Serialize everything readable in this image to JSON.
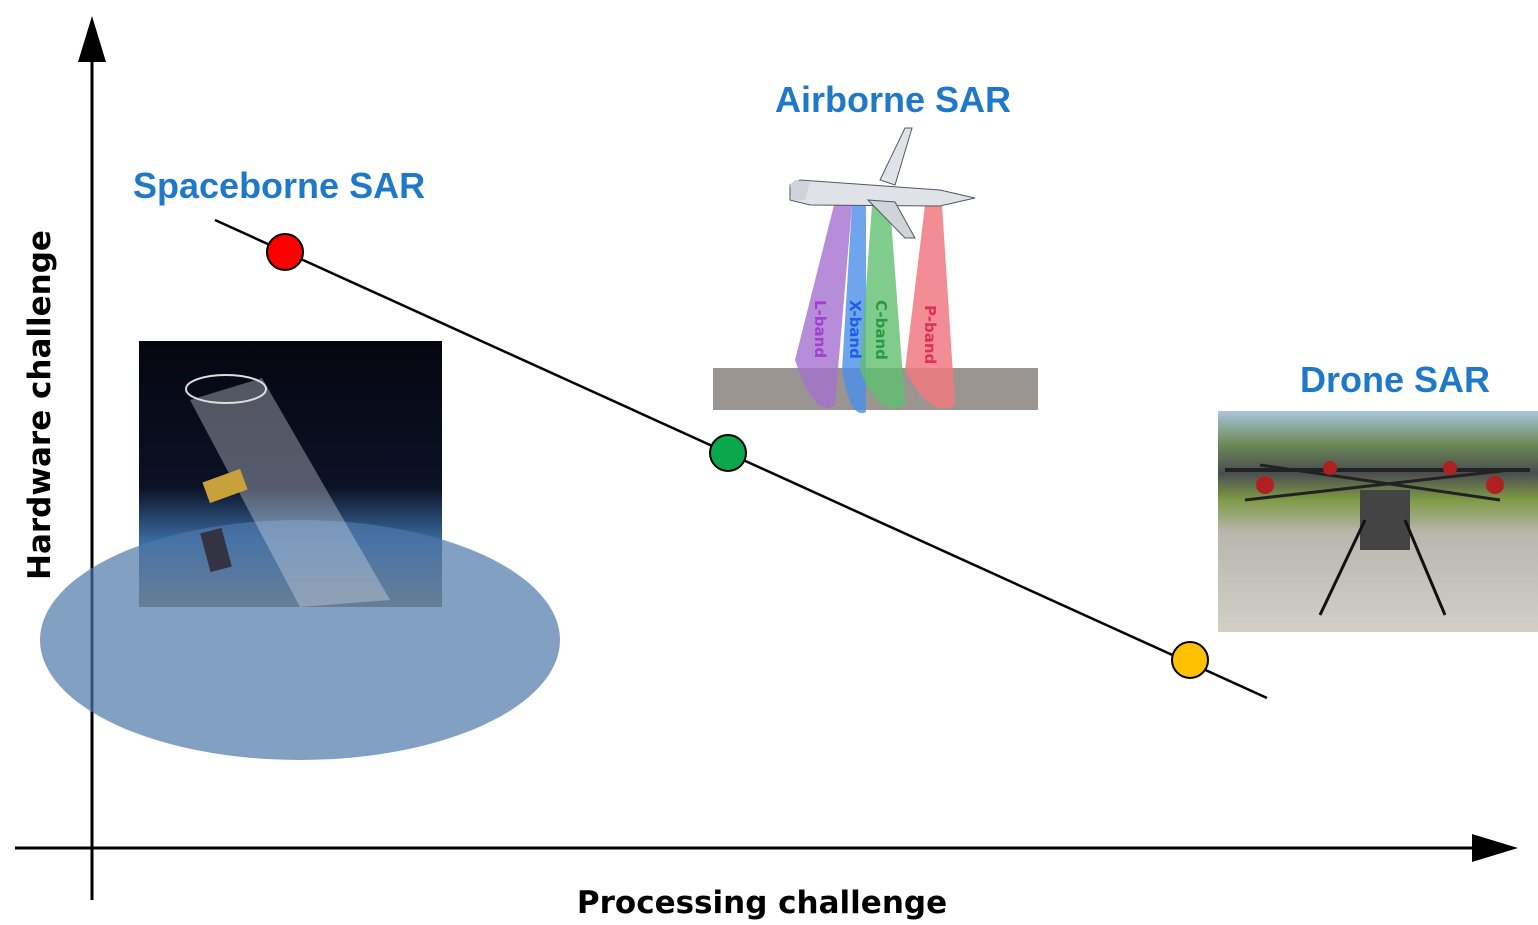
{
  "axes": {
    "x_label": "Processing challenge",
    "y_label": "Hardware challenge"
  },
  "nodes": [
    {
      "label": "Spaceborne SAR"
    },
    {
      "label": "Airborne SAR",
      "bands": [
        "L-band",
        "X-band",
        "C-band",
        "P-band"
      ]
    },
    {
      "label": "Drone SAR"
    }
  ]
}
